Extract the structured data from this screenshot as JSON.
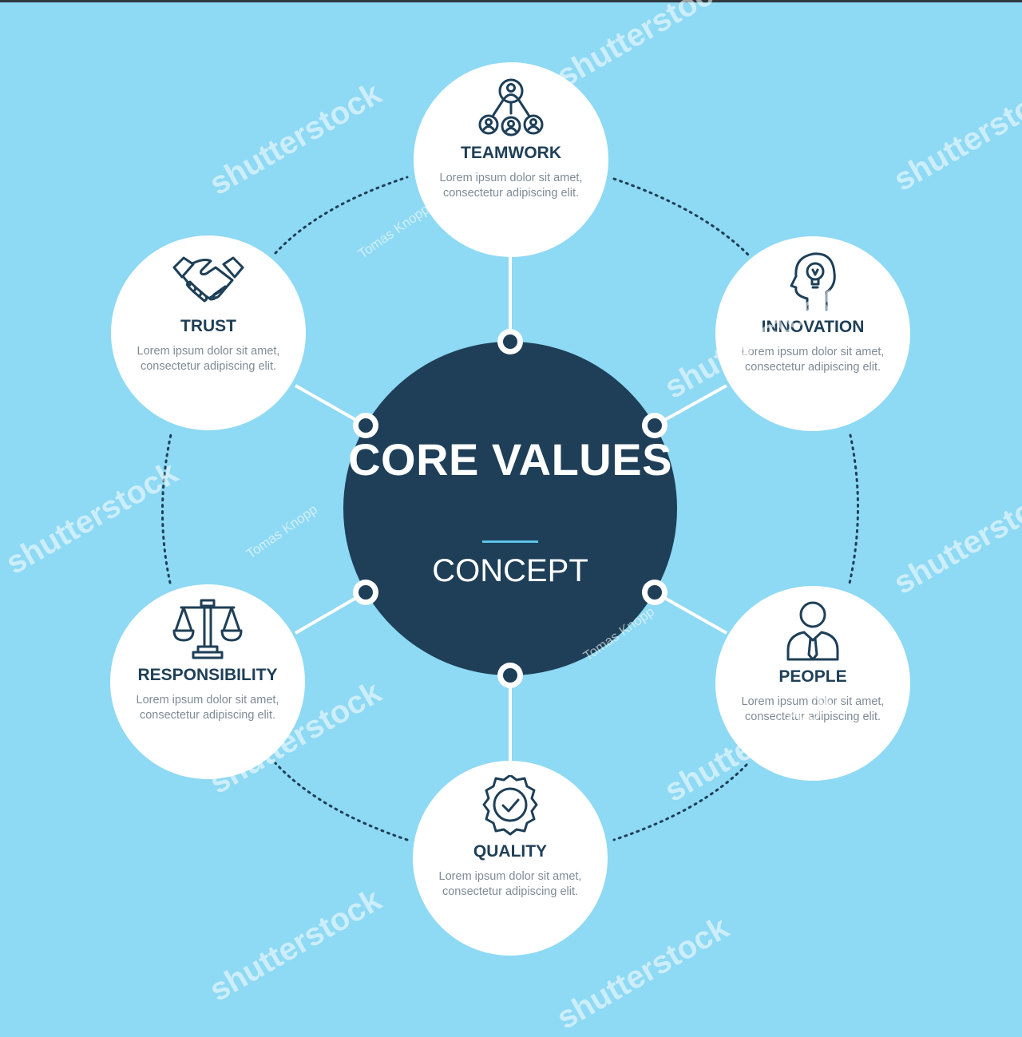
{
  "center": {
    "title": "CORE VALUES",
    "subtitle": "CONCEPT"
  },
  "nodes": [
    {
      "label": "TEAMWORK",
      "description": "Lorem ipsum dolor sit amet, consectetur adipiscing elit.",
      "icon": "teamwork-network-icon"
    },
    {
      "label": "INNOVATION",
      "description": "Lorem ipsum dolor sit amet, consectetur adipiscing elit.",
      "icon": "head-lightbulb-icon"
    },
    {
      "label": "PEOPLE",
      "description": "Lorem ipsum dolor sit amet, consectetur adipiscing elit.",
      "icon": "person-tie-icon"
    },
    {
      "label": "QUALITY",
      "description": "Lorem ipsum dolor sit amet, consectetur adipiscing elit.",
      "icon": "quality-badge-check-icon"
    },
    {
      "label": "RESPONSIBILITY",
      "description": "Lorem ipsum dolor sit amet, consectetur adipiscing elit.",
      "icon": "scales-icon"
    },
    {
      "label": "TRUST",
      "description": "Lorem ipsum dolor sit amet, consectetur adipiscing elit.",
      "icon": "handshake-icon"
    }
  ],
  "watermarks": {
    "brand": "shutterstock",
    "author": "Tomas Knopp"
  },
  "colors": {
    "background": "#8ed9f4",
    "center_fill": "#1e3f57",
    "node_fill": "#ffffff",
    "text_dark": "#1e3f57",
    "text_muted": "#7e8b96",
    "accent_rule": "#5bc2ea"
  }
}
